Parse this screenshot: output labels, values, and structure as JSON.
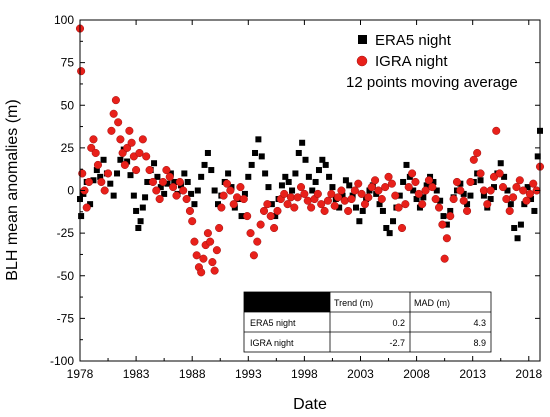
{
  "chart_data": {
    "type": "scatter",
    "xlabel": "Date",
    "ylabel": "BLH mean anomalies (m)",
    "xlim": [
      1978,
      2019
    ],
    "ylim": [
      -100,
      100
    ],
    "x_ticks": [
      1978,
      1983,
      1988,
      1993,
      1998,
      2003,
      2008,
      2013,
      2018
    ],
    "y_ticks": [
      -100,
      -75,
      -50,
      -25,
      0,
      25,
      50,
      75,
      100
    ],
    "grid": false,
    "legend_position": "top-right",
    "legend_note": "12 points moving average",
    "series": [
      {
        "name": "ERA5 night",
        "marker": "square",
        "color": "#000000",
        "points": [
          [
            1978.0,
            -5
          ],
          [
            1978.1,
            -15
          ],
          [
            1978.3,
            -2
          ],
          [
            1978.6,
            5
          ],
          [
            1978.9,
            -8
          ],
          [
            1979.2,
            6
          ],
          [
            1979.5,
            12
          ],
          [
            1979.8,
            8
          ],
          [
            1980.1,
            18
          ],
          [
            1980.4,
            10
          ],
          [
            1980.7,
            4
          ],
          [
            1981.0,
            -3
          ],
          [
            1981.3,
            10
          ],
          [
            1981.6,
            18
          ],
          [
            1981.9,
            24
          ],
          [
            1982.2,
            17
          ],
          [
            1982.5,
            9
          ],
          [
            1982.8,
            -3
          ],
          [
            1983.0,
            -12
          ],
          [
            1983.2,
            -22
          ],
          [
            1983.4,
            -18
          ],
          [
            1983.6,
            -10
          ],
          [
            1983.8,
            -4
          ],
          [
            1984.0,
            5
          ],
          [
            1984.3,
            12
          ],
          [
            1984.6,
            16
          ],
          [
            1984.9,
            8
          ],
          [
            1985.2,
            2
          ],
          [
            1985.5,
            -2
          ],
          [
            1985.8,
            4
          ],
          [
            1986.1,
            10
          ],
          [
            1986.4,
            5
          ],
          [
            1986.7,
            -2
          ],
          [
            1987.0,
            3
          ],
          [
            1987.3,
            10
          ],
          [
            1987.6,
            5
          ],
          [
            1987.9,
            -2
          ],
          [
            1988.2,
            -8
          ],
          [
            1988.5,
            0
          ],
          [
            1988.8,
            8
          ],
          [
            1989.1,
            15
          ],
          [
            1989.4,
            22
          ],
          [
            1989.7,
            12
          ],
          [
            1990.0,
            0
          ],
          [
            1990.3,
            -8
          ],
          [
            1990.6,
            -3
          ],
          [
            1990.9,
            5
          ],
          [
            1991.2,
            10
          ],
          [
            1991.5,
            2
          ],
          [
            1991.8,
            -10
          ],
          [
            1992.1,
            -5
          ],
          [
            1992.4,
            -15
          ],
          [
            1992.7,
            -2
          ],
          [
            1993.0,
            8
          ],
          [
            1993.3,
            15
          ],
          [
            1993.6,
            22
          ],
          [
            1993.9,
            30
          ],
          [
            1994.2,
            20
          ],
          [
            1994.5,
            10
          ],
          [
            1994.8,
            2
          ],
          [
            1995.1,
            -8
          ],
          [
            1995.4,
            -15
          ],
          [
            1995.7,
            -5
          ],
          [
            1996.0,
            3
          ],
          [
            1996.3,
            8
          ],
          [
            1996.6,
            5
          ],
          [
            1996.9,
            0
          ],
          [
            1997.2,
            10
          ],
          [
            1997.5,
            22
          ],
          [
            1997.8,
            28
          ],
          [
            1998.1,
            18
          ],
          [
            1998.4,
            8
          ],
          [
            1998.7,
            0
          ],
          [
            1999.0,
            5
          ],
          [
            1999.3,
            12
          ],
          [
            1999.6,
            18
          ],
          [
            1999.9,
            15
          ],
          [
            2000.2,
            8
          ],
          [
            2000.5,
            2
          ],
          [
            2000.8,
            -5
          ],
          [
            2001.1,
            -10
          ],
          [
            2001.4,
            -3
          ],
          [
            2001.7,
            6
          ],
          [
            2002.0,
            3
          ],
          [
            2002.3,
            -3
          ],
          [
            2002.6,
            -10
          ],
          [
            2002.9,
            -18
          ],
          [
            2003.2,
            -12
          ],
          [
            2003.5,
            -5
          ],
          [
            2003.8,
            0
          ],
          [
            2004.1,
            3
          ],
          [
            2004.4,
            -2
          ],
          [
            2004.7,
            -8
          ],
          [
            2005.0,
            -12
          ],
          [
            2005.3,
            -22
          ],
          [
            2005.6,
            -25
          ],
          [
            2005.9,
            -18
          ],
          [
            2006.2,
            -10
          ],
          [
            2006.5,
            -3
          ],
          [
            2006.8,
            5
          ],
          [
            2007.1,
            15
          ],
          [
            2007.4,
            8
          ],
          [
            2007.7,
            0
          ],
          [
            2008.0,
            -5
          ],
          [
            2008.3,
            -10
          ],
          [
            2008.6,
            -4
          ],
          [
            2008.9,
            3
          ],
          [
            2009.2,
            8
          ],
          [
            2009.5,
            5
          ],
          [
            2009.8,
            0
          ],
          [
            2010.1,
            -6
          ],
          [
            2010.4,
            -15
          ],
          [
            2010.7,
            -20
          ],
          [
            2011.0,
            -12
          ],
          [
            2011.3,
            -4
          ],
          [
            2011.6,
            0
          ],
          [
            2011.9,
            4
          ],
          [
            2012.2,
            -2
          ],
          [
            2012.5,
            -8
          ],
          [
            2012.8,
            -3
          ],
          [
            2013.1,
            5
          ],
          [
            2013.4,
            10
          ],
          [
            2013.7,
            6
          ],
          [
            2014.0,
            -3
          ],
          [
            2014.3,
            -10
          ],
          [
            2014.6,
            -5
          ],
          [
            2014.9,
            2
          ],
          [
            2015.2,
            10
          ],
          [
            2015.5,
            16
          ],
          [
            2015.8,
            8
          ],
          [
            2016.1,
            0
          ],
          [
            2016.4,
            -8
          ],
          [
            2016.7,
            -22
          ],
          [
            2017.0,
            -28
          ],
          [
            2017.3,
            -20
          ],
          [
            2017.6,
            -8
          ],
          [
            2017.9,
            2
          ],
          [
            2018.2,
            -5
          ],
          [
            2018.5,
            -12
          ],
          [
            2018.8,
            20
          ],
          [
            2019.0,
            35
          ]
        ]
      },
      {
        "name": "IGRA night",
        "marker": "circle",
        "color": "#e8201a",
        "points": [
          [
            1978.0,
            95
          ],
          [
            1978.1,
            70
          ],
          [
            1978.2,
            10
          ],
          [
            1978.4,
            0
          ],
          [
            1978.6,
            -10
          ],
          [
            1978.8,
            5
          ],
          [
            1979.0,
            25
          ],
          [
            1979.2,
            30
          ],
          [
            1979.4,
            22
          ],
          [
            1979.6,
            15
          ],
          [
            1979.9,
            5
          ],
          [
            1980.2,
            0
          ],
          [
            1980.5,
            10
          ],
          [
            1980.8,
            35
          ],
          [
            1981.0,
            45
          ],
          [
            1981.2,
            53
          ],
          [
            1981.4,
            40
          ],
          [
            1981.6,
            30
          ],
          [
            1981.8,
            22
          ],
          [
            1982.0,
            15
          ],
          [
            1982.2,
            25
          ],
          [
            1982.4,
            35
          ],
          [
            1982.6,
            28
          ],
          [
            1982.8,
            20
          ],
          [
            1983.0,
            12
          ],
          [
            1983.3,
            22
          ],
          [
            1983.6,
            30
          ],
          [
            1983.9,
            20
          ],
          [
            1984.2,
            12
          ],
          [
            1984.5,
            5
          ],
          [
            1984.8,
            0
          ],
          [
            1985.1,
            -5
          ],
          [
            1985.4,
            5
          ],
          [
            1985.7,
            12
          ],
          [
            1986.0,
            8
          ],
          [
            1986.3,
            2
          ],
          [
            1986.6,
            -3
          ],
          [
            1986.9,
            5
          ],
          [
            1987.2,
            0
          ],
          [
            1987.5,
            -5
          ],
          [
            1987.8,
            -12
          ],
          [
            1988.0,
            -18
          ],
          [
            1988.2,
            -30
          ],
          [
            1988.4,
            -38
          ],
          [
            1988.6,
            -45
          ],
          [
            1988.8,
            -48
          ],
          [
            1989.0,
            -40
          ],
          [
            1989.2,
            -32
          ],
          [
            1989.4,
            -25
          ],
          [
            1989.6,
            -30
          ],
          [
            1989.8,
            -42
          ],
          [
            1990.0,
            -47
          ],
          [
            1990.2,
            -35
          ],
          [
            1990.4,
            -22
          ],
          [
            1990.6,
            -10
          ],
          [
            1990.8,
            -3
          ],
          [
            1991.1,
            4
          ],
          [
            1991.4,
            0
          ],
          [
            1991.7,
            -8
          ],
          [
            1992.0,
            -4
          ],
          [
            1992.3,
            2
          ],
          [
            1992.6,
            -5
          ],
          [
            1992.9,
            -15
          ],
          [
            1993.2,
            -25
          ],
          [
            1993.5,
            -38
          ],
          [
            1993.8,
            -30
          ],
          [
            1994.1,
            -20
          ],
          [
            1994.4,
            -12
          ],
          [
            1994.7,
            -8
          ],
          [
            1995.0,
            -15
          ],
          [
            1995.3,
            -22
          ],
          [
            1995.6,
            -12
          ],
          [
            1995.9,
            -5
          ],
          [
            1996.2,
            -2
          ],
          [
            1996.5,
            -8
          ],
          [
            1996.8,
            -4
          ],
          [
            1997.1,
            -10
          ],
          [
            1997.4,
            -4
          ],
          [
            1997.7,
            2
          ],
          [
            1998.0,
            -2
          ],
          [
            1998.3,
            -6
          ],
          [
            1998.6,
            -10
          ],
          [
            1998.9,
            -5
          ],
          [
            1999.2,
            -2
          ],
          [
            1999.5,
            -8
          ],
          [
            1999.8,
            -12
          ],
          [
            2000.1,
            -6
          ],
          [
            2000.4,
            -2
          ],
          [
            2000.7,
            -9
          ],
          [
            2001.0,
            -4
          ],
          [
            2001.3,
            0
          ],
          [
            2001.6,
            -6
          ],
          [
            2001.9,
            -12
          ],
          [
            2002.2,
            -5
          ],
          [
            2002.5,
            0
          ],
          [
            2002.8,
            4
          ],
          [
            2003.1,
            -2
          ],
          [
            2003.4,
            -8
          ],
          [
            2003.7,
            -4
          ],
          [
            2004.0,
            2
          ],
          [
            2004.3,
            6
          ],
          [
            2004.6,
            0
          ],
          [
            2004.9,
            -5
          ],
          [
            2005.2,
            2
          ],
          [
            2005.5,
            8
          ],
          [
            2005.8,
            4
          ],
          [
            2006.1,
            -3
          ],
          [
            2006.4,
            -10
          ],
          [
            2006.7,
            -22
          ],
          [
            2007.0,
            -8
          ],
          [
            2007.3,
            2
          ],
          [
            2007.6,
            10
          ],
          [
            2007.9,
            5
          ],
          [
            2008.2,
            -2
          ],
          [
            2008.5,
            -8
          ],
          [
            2008.8,
            0
          ],
          [
            2009.1,
            6
          ],
          [
            2009.4,
            2
          ],
          [
            2009.7,
            -5
          ],
          [
            2010.0,
            -10
          ],
          [
            2010.3,
            -20
          ],
          [
            2010.5,
            -40
          ],
          [
            2010.7,
            -28
          ],
          [
            2011.0,
            -15
          ],
          [
            2011.3,
            -5
          ],
          [
            2011.6,
            5
          ],
          [
            2011.9,
            0
          ],
          [
            2012.2,
            -6
          ],
          [
            2012.5,
            -12
          ],
          [
            2012.8,
            5
          ],
          [
            2013.1,
            18
          ],
          [
            2013.4,
            22
          ],
          [
            2013.7,
            10
          ],
          [
            2014.0,
            0
          ],
          [
            2014.3,
            -8
          ],
          [
            2014.6,
            0
          ],
          [
            2014.9,
            8
          ],
          [
            2015.1,
            35
          ],
          [
            2015.4,
            10
          ],
          [
            2015.7,
            2
          ],
          [
            2016.0,
            -5
          ],
          [
            2016.3,
            -12
          ],
          [
            2016.6,
            -4
          ],
          [
            2016.9,
            2
          ],
          [
            2017.2,
            6
          ],
          [
            2017.5,
            0
          ],
          [
            2017.8,
            -6
          ],
          [
            2018.1,
            -2
          ],
          [
            2018.4,
            4
          ],
          [
            2018.7,
            0
          ],
          [
            2019.0,
            14
          ]
        ]
      }
    ],
    "inset_table": {
      "columns": [
        "",
        "Trend (m)",
        "MAD (m)"
      ],
      "rows": [
        [
          "ERA5 night",
          "0.2",
          "4.3"
        ],
        [
          "IGRA night",
          "-2.7",
          "8.9"
        ]
      ]
    }
  }
}
